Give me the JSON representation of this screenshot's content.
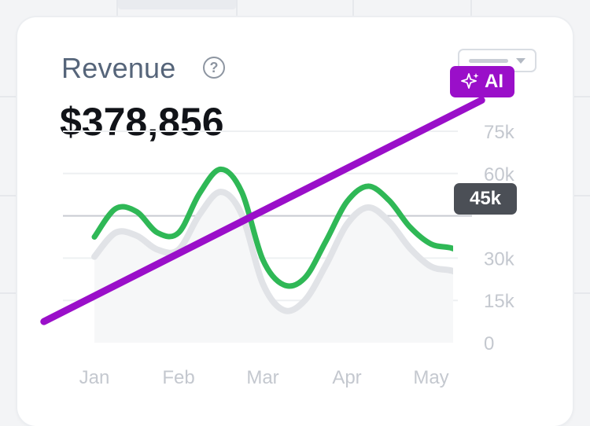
{
  "card": {
    "title": "Revenue",
    "help_glyph": "?",
    "total": "$378,856",
    "period_select": {
      "icon": "chevron-down-icon"
    }
  },
  "badges": {
    "current_value": "45k",
    "ai_label": "AI",
    "ai_icon": "sparkles-icon",
    "ai_color": "#9a0fc9"
  },
  "chart_data": {
    "type": "line",
    "xlabels": [
      "Jan",
      "Feb",
      "Mar",
      "Apr",
      "May"
    ],
    "ytick_labels": [
      "0",
      "15k",
      "30k",
      "45k",
      "60k",
      "75k"
    ],
    "yticks": [
      0,
      15000,
      30000,
      45000,
      60000,
      75000
    ],
    "ylim": [
      0,
      75000
    ],
    "reference_line": 45000,
    "series": [
      {
        "color": "#2fb856",
        "x": [
          0,
          0.25,
          0.5,
          0.75,
          1.0,
          1.25,
          1.5,
          1.75,
          2.0,
          2.25,
          2.5,
          2.75,
          3.0,
          3.25,
          3.5,
          3.75,
          4.0,
          4.25,
          4.5
        ],
        "values": [
          37500,
          47500,
          46500,
          39000,
          39000,
          53000,
          61500,
          53500,
          29500,
          20500,
          23000,
          36000,
          50000,
          55500,
          50500,
          41000,
          35000,
          33500,
          30500
        ]
      },
      {
        "color": "#e1e3e7",
        "x": [
          0,
          0.25,
          0.5,
          0.75,
          1.0,
          1.25,
          1.5,
          1.75,
          2.0,
          2.25,
          2.5,
          2.75,
          3.0,
          3.25,
          3.5,
          3.75,
          4.0,
          4.25,
          4.5
        ],
        "values": [
          30500,
          39000,
          38000,
          33000,
          33000,
          45500,
          53500,
          45500,
          21000,
          11500,
          15000,
          27500,
          42000,
          48000,
          43000,
          33500,
          27000,
          25500,
          22500
        ]
      },
      {
        "color": "#9a0fc9",
        "x": [
          -0.6,
          4.6
        ],
        "values": [
          7500,
          86000
        ]
      }
    ]
  }
}
